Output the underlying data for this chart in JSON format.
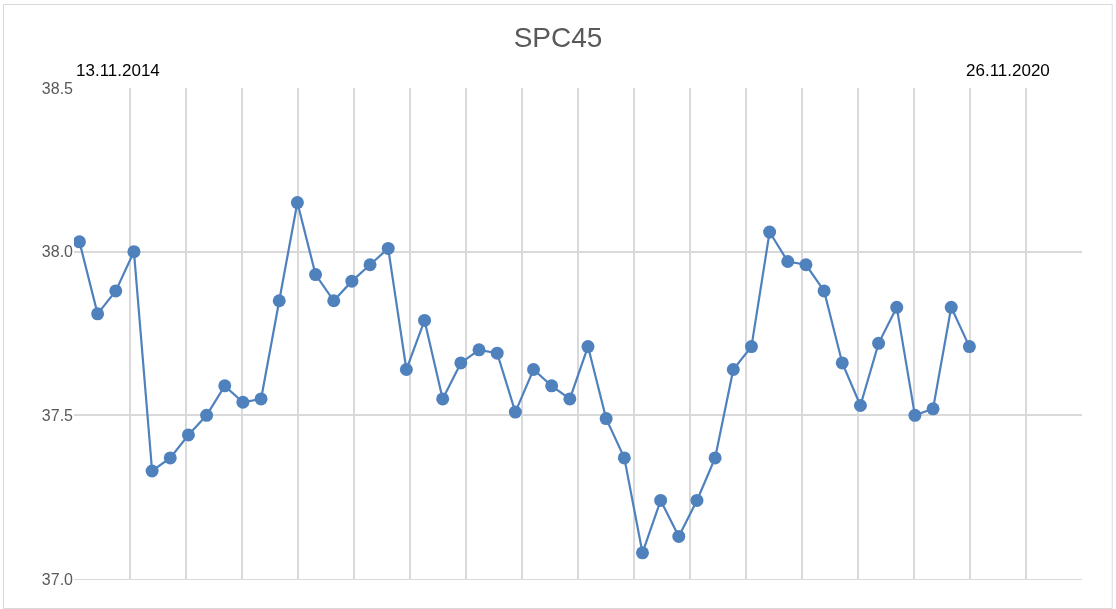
{
  "chart_data": {
    "type": "line",
    "title": "SPC45",
    "annotations": [
      "13.11.2014",
      "26.11.2020"
    ],
    "categories": [
      null,
      null,
      null,
      null,
      null,
      null,
      null,
      null,
      null,
      null,
      null,
      null,
      null,
      null,
      null,
      null,
      null,
      null,
      null,
      null,
      null,
      null,
      null,
      null,
      null,
      null,
      null,
      null,
      null,
      null,
      null,
      null,
      null,
      null,
      null,
      null,
      null,
      null,
      null,
      null,
      null,
      null,
      null,
      null,
      null,
      null,
      null,
      null,
      null,
      null
    ],
    "series": [
      {
        "color": "#4f81bd",
        "values": [
          38.03,
          37.81,
          37.88,
          38.0,
          37.33,
          37.37,
          37.44,
          37.5,
          37.59,
          37.54,
          37.55,
          37.85,
          38.15,
          37.93,
          37.85,
          37.91,
          37.96,
          38.01,
          37.64,
          37.79,
          37.55,
          37.66,
          37.7,
          37.69,
          37.51,
          37.64,
          37.59,
          37.55,
          37.71,
          37.49,
          37.37,
          37.08,
          37.24,
          37.13,
          37.24,
          37.37,
          37.64,
          37.71,
          38.06,
          37.97,
          37.96,
          37.88,
          37.66,
          37.53,
          37.72,
          37.83,
          37.5,
          37.52,
          37.83,
          37.71
        ]
      }
    ],
    "ylim": [
      37.0,
      38.5
    ],
    "yticks": [
      {
        "value": 37.0,
        "label": "37.0"
      },
      {
        "value": 37.5,
        "label": "37.5"
      },
      {
        "value": 38.0,
        "label": "38.0"
      },
      {
        "value": 38.5,
        "label": "38.5"
      }
    ],
    "grid": true,
    "marker": "circle",
    "line_style": "solid",
    "tick_labels": "y"
  }
}
